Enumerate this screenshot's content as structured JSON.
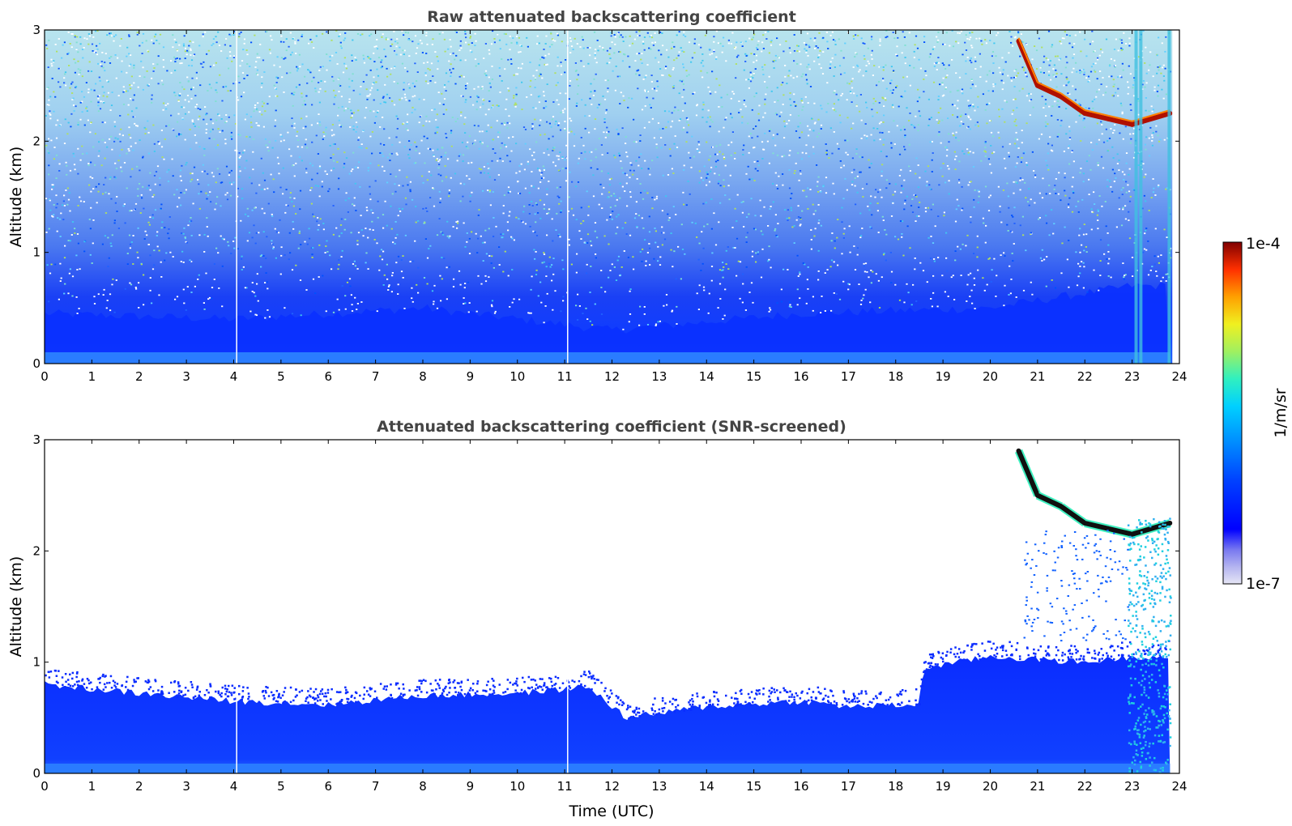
{
  "chart_data": [
    {
      "type": "heatmap",
      "title": "Raw attenuated backscattering coefficient",
      "xlabel": "",
      "ylabel": "Altitude (km)",
      "xlim": [
        0,
        24
      ],
      "ylim": [
        0,
        3
      ],
      "xticks": [
        "0",
        "1",
        "2",
        "3",
        "4",
        "5",
        "6",
        "7",
        "8",
        "9",
        "10",
        "11",
        "12",
        "13",
        "14",
        "15",
        "16",
        "17",
        "18",
        "19",
        "20",
        "21",
        "22",
        "23",
        "24"
      ],
      "yticks": [
        "0",
        "1",
        "2",
        "3"
      ],
      "description_values": {
        "boundary_layer_top_km": [
          [
            0,
            0.45
          ],
          [
            4,
            0.4
          ],
          [
            8,
            0.5
          ],
          [
            12,
            0.3
          ],
          [
            16,
            0.45
          ],
          [
            20,
            0.5
          ],
          [
            23,
            0.7
          ]
        ],
        "cloud_base_km": [
          [
            20.6,
            2.9
          ],
          [
            21,
            2.5
          ],
          [
            21.5,
            2.4
          ],
          [
            22,
            2.25
          ],
          [
            22.5,
            2.2
          ],
          [
            23,
            2.15
          ],
          [
            23.8,
            2.25
          ]
        ],
        "data_gaps_utc": [
          4.05,
          11.05
        ]
      }
    },
    {
      "type": "heatmap",
      "title": "Attenuated backscattering coefficient (SNR-screened)",
      "xlabel": "Time (UTC)",
      "ylabel": "Altitude (km)",
      "xlim": [
        0,
        24
      ],
      "ylim": [
        0,
        3
      ],
      "xticks": [
        "0",
        "1",
        "2",
        "3",
        "4",
        "5",
        "6",
        "7",
        "8",
        "9",
        "10",
        "11",
        "12",
        "13",
        "14",
        "15",
        "16",
        "17",
        "18",
        "19",
        "20",
        "21",
        "22",
        "23",
        "24"
      ],
      "yticks": [
        "0",
        "1",
        "2",
        "3"
      ],
      "description_values": {
        "screened_top_km": [
          [
            0,
            0.8
          ],
          [
            2,
            0.72
          ],
          [
            4,
            0.65
          ],
          [
            6,
            0.62
          ],
          [
            8,
            0.7
          ],
          [
            10,
            0.72
          ],
          [
            11.5,
            0.78
          ],
          [
            12.3,
            0.5
          ],
          [
            14,
            0.6
          ],
          [
            16,
            0.65
          ],
          [
            17,
            0.6
          ],
          [
            18.5,
            0.62
          ],
          [
            18.6,
            0.95
          ],
          [
            20,
            1.05
          ],
          [
            22,
            1.0
          ],
          [
            23,
            1.05
          ]
        ]
      }
    }
  ],
  "colorbar": {
    "label": "1/m/sr",
    "max_label": "1e-4",
    "min_label": "1e-7",
    "colormap": [
      "#e6e6f5",
      "#b4b4f0",
      "#7878f0",
      "#0000ff",
      "#0040ff",
      "#0080ff",
      "#00c0ff",
      "#20e0e0",
      "#60f0a0",
      "#a0f060",
      "#e0f020",
      "#ffe000",
      "#ffa000",
      "#ff6000",
      "#ff2000",
      "#c00000",
      "#800000"
    ]
  }
}
